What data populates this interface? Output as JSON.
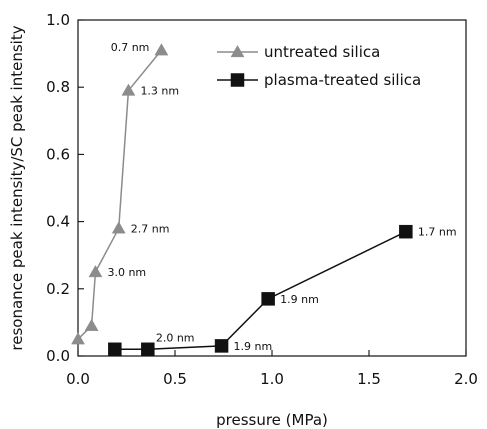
{
  "chart_data": {
    "type": "line",
    "xlabel": "pressure (MPa)",
    "ylabel": "resonance peak intensity/SC peak intensity",
    "xlim": [
      0,
      2.0
    ],
    "ylim": [
      0,
      1.0
    ],
    "xticks": [
      0,
      0.5,
      1.0,
      1.5,
      2.0
    ],
    "xtick_labels": [
      "0.0",
      "0.5",
      "1.0",
      "1.5",
      "2.0"
    ],
    "yticks": [
      0,
      0.2,
      0.4,
      0.6,
      0.8,
      1.0
    ],
    "ytick_labels": [
      "0.0",
      "0.2",
      "0.4",
      "0.6",
      "0.8",
      "1.0"
    ],
    "grid": false,
    "legend_placement": "top-right",
    "series": [
      {
        "name": "untreated silica",
        "marker": "triangle",
        "color": "#8c8c8c",
        "x": [
          0.0,
          0.07,
          0.09,
          0.21,
          0.26,
          0.43
        ],
        "y": [
          0.05,
          0.09,
          0.25,
          0.38,
          0.79,
          0.91
        ]
      },
      {
        "name": "plasma-treated silica",
        "marker": "square",
        "color": "#111111",
        "x": [
          0.19,
          0.36,
          0.74,
          0.98,
          1.69
        ],
        "y": [
          0.02,
          0.02,
          0.03,
          0.17,
          0.37
        ]
      }
    ],
    "annotations": [
      {
        "text": "0.7 nm",
        "x": 0.43,
        "y": 0.91,
        "position": "left"
      },
      {
        "text": "1.3 nm",
        "x": 0.26,
        "y": 0.79,
        "position": "right"
      },
      {
        "text": "2.7 nm",
        "x": 0.21,
        "y": 0.38,
        "position": "right"
      },
      {
        "text": "3.0 nm",
        "x": 0.09,
        "y": 0.25,
        "position": "right"
      },
      {
        "text": "2.0 nm",
        "x": 0.36,
        "y": 0.02,
        "position": "above-right"
      },
      {
        "text": "1.9 nm",
        "x": 0.74,
        "y": 0.03,
        "position": "right"
      },
      {
        "text": "1.9 nm",
        "x": 0.98,
        "y": 0.17,
        "position": "right"
      },
      {
        "text": "1.7 nm",
        "x": 1.69,
        "y": 0.37,
        "position": "right"
      }
    ]
  }
}
